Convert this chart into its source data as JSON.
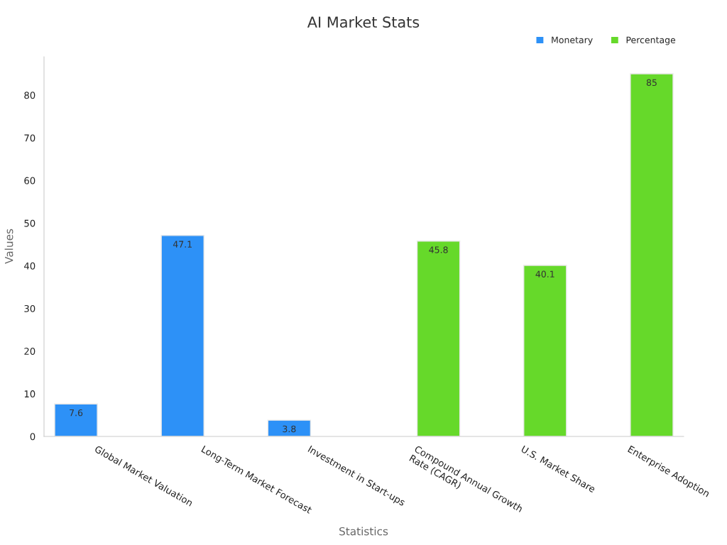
{
  "chart_data": {
    "type": "bar",
    "title": "AI Market Stats",
    "xlabel": "Statistics",
    "ylabel": "Values",
    "categories": [
      "Global Market Valuation",
      "Long-Term Market Forecast",
      "Investment in Start-ups",
      "Compound Annual Growth\nRate (CAGR)",
      "U.S. Market Share",
      "Enterprise Adoption"
    ],
    "series": [
      {
        "name": "Monetary",
        "color": "#2d91f7",
        "values": [
          7.6,
          47.1,
          3.8,
          null,
          null,
          null
        ]
      },
      {
        "name": "Percentage",
        "color": "#66d92a",
        "values": [
          null,
          null,
          null,
          45.8,
          40.1,
          85
        ]
      }
    ],
    "ylim": [
      0,
      89
    ],
    "yticks": [
      0,
      10,
      20,
      30,
      40,
      50,
      60,
      70,
      80
    ],
    "data_labels": true,
    "grid": false,
    "legend": "top right"
  }
}
